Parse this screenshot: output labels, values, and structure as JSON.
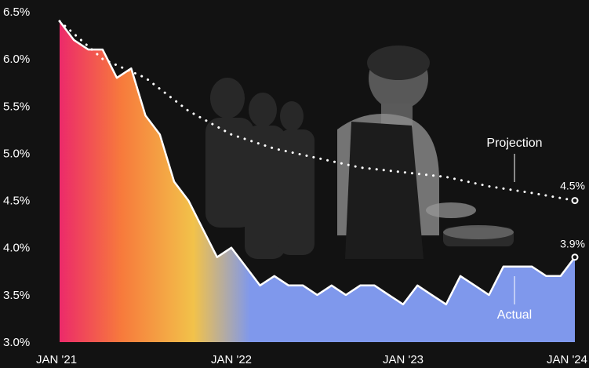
{
  "chart_data": {
    "type": "area",
    "title": "",
    "xlabel": "",
    "ylabel": "",
    "ylim": [
      3.0,
      6.5
    ],
    "xlim": [
      "2021-01",
      "2024-01"
    ],
    "x_ticks": [
      "JAN '21",
      "JAN '22",
      "JAN '23",
      "JAN '24"
    ],
    "y_ticks": [
      "3.0%",
      "3.5%",
      "4.0%",
      "4.5%",
      "5.0%",
      "5.5%",
      "6.0%",
      "6.5%"
    ],
    "grid": false,
    "colors": {
      "background": "#121212",
      "actual_area_start": "#ec2a6a",
      "actual_area_mid_orange": "#f77a3c",
      "actual_area_mid_yellow": "#f2c24a",
      "actual_area_end": "#7f98ec",
      "line": "#ffffff"
    },
    "series": [
      {
        "name": "Projection",
        "style": "dotted",
        "x": [
          "2021-01",
          "2021-04",
          "2021-07",
          "2021-10",
          "2022-01",
          "2022-04",
          "2022-07",
          "2022-10",
          "2023-01",
          "2023-04",
          "2023-07",
          "2023-10",
          "2024-01"
        ],
        "values": [
          6.4,
          6.0,
          5.8,
          5.45,
          5.2,
          5.05,
          4.95,
          4.85,
          4.8,
          4.75,
          4.65,
          4.58,
          4.5
        ]
      },
      {
        "name": "Actual",
        "style": "filled-area",
        "x": [
          "2021-01",
          "2021-02",
          "2021-03",
          "2021-04",
          "2021-05",
          "2021-06",
          "2021-07",
          "2021-08",
          "2021-09",
          "2021-10",
          "2021-11",
          "2021-12",
          "2022-01",
          "2022-02",
          "2022-03",
          "2022-04",
          "2022-05",
          "2022-06",
          "2022-07",
          "2022-08",
          "2022-09",
          "2022-10",
          "2022-11",
          "2022-12",
          "2023-01",
          "2023-02",
          "2023-03",
          "2023-04",
          "2023-05",
          "2023-06",
          "2023-07",
          "2023-08",
          "2023-09",
          "2023-10",
          "2023-11",
          "2023-12",
          "2024-01"
        ],
        "values": [
          6.4,
          6.2,
          6.1,
          6.1,
          5.8,
          5.9,
          5.4,
          5.2,
          4.7,
          4.5,
          4.2,
          3.9,
          4.0,
          3.8,
          3.6,
          3.7,
          3.6,
          3.6,
          3.5,
          3.6,
          3.5,
          3.6,
          3.6,
          3.5,
          3.4,
          3.6,
          3.5,
          3.4,
          3.7,
          3.6,
          3.5,
          3.8,
          3.8,
          3.8,
          3.7,
          3.7,
          3.9
        ]
      }
    ],
    "annotations": {
      "projection_label": "Projection",
      "actual_label": "Actual",
      "projection_end_label": "4.5%",
      "actual_end_label": "3.9%"
    }
  }
}
